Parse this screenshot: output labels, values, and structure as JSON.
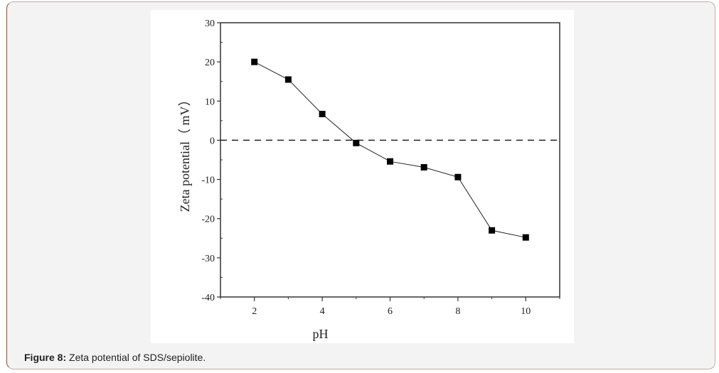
{
  "caption": {
    "label": "Figure 8:",
    "text": " Zeta potential of SDS/sepiolite."
  },
  "chart_data": {
    "type": "line",
    "title": "",
    "xlabel": "pH",
    "ylabel": "Zeta potential（ mV）",
    "x": [
      2,
      3,
      4,
      5,
      6,
      7,
      8,
      9,
      10
    ],
    "series": [
      {
        "name": "SDS/sepiolite",
        "values": [
          20.0,
          15.5,
          6.7,
          -0.7,
          -5.4,
          -6.9,
          -9.4,
          -23.0,
          -24.8
        ],
        "marker": "square",
        "color": "#000000"
      }
    ],
    "reference_line": {
      "y": 0,
      "style": "dashed"
    },
    "xlim": [
      1,
      11
    ],
    "ylim": [
      -40,
      30
    ],
    "xticks": [
      2,
      4,
      6,
      8,
      10
    ],
    "yticks": [
      -40,
      -30,
      -20,
      -10,
      0,
      10,
      20,
      30
    ],
    "grid": false,
    "legend": false
  }
}
